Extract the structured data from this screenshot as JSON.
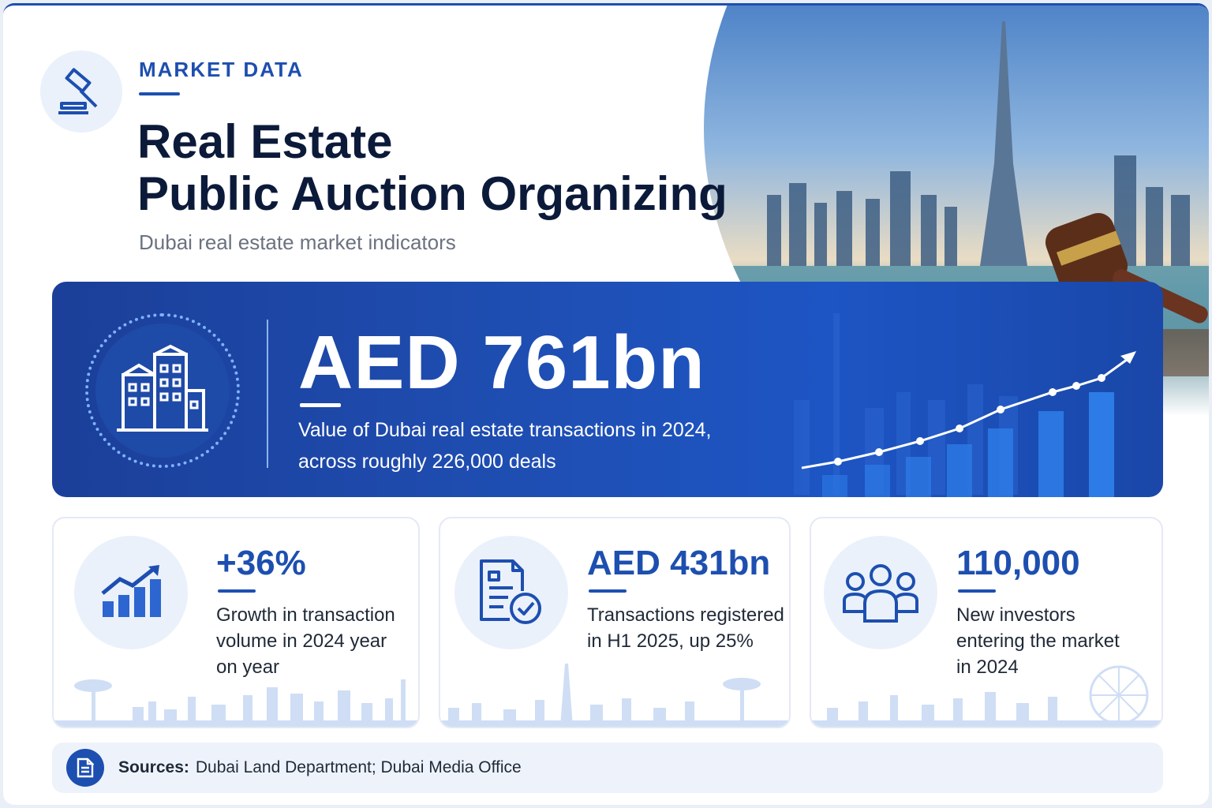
{
  "header": {
    "kicker": "MARKET DATA",
    "title_line1": "Real Estate",
    "title_line2": "Public Auction Organizing",
    "subtitle": "Dubai real estate market indicators",
    "icon": "gavel-icon"
  },
  "highlight": {
    "value": "AED 761bn",
    "description_line1": "Value of Dubai real estate transactions in 2024,",
    "description_line2": "across roughly 226,000 deals",
    "icon": "buildings-icon"
  },
  "stats": [
    {
      "value": "+36%",
      "desc_line1": "Growth in transaction",
      "desc_line2": "volume in 2024 year",
      "desc_line3": "on year",
      "icon": "growth-chart-icon"
    },
    {
      "value": "AED 431bn",
      "desc_line1": "Transactions registered",
      "desc_line2": "in H1 2025, up 25%",
      "icon": "document-check-icon"
    },
    {
      "value": "110,000",
      "desc_line1": "New investors",
      "desc_line2": "entering the market",
      "desc_line3": "in 2024",
      "icon": "people-icon"
    }
  ],
  "sources": {
    "label": "Sources:",
    "text": "Dubai Land Department; Dubai Media Office",
    "icon": "document-icon"
  },
  "colors": {
    "accent": "#1d4fb0",
    "title": "#0c1a3a",
    "banner": "#1f4fb4"
  }
}
